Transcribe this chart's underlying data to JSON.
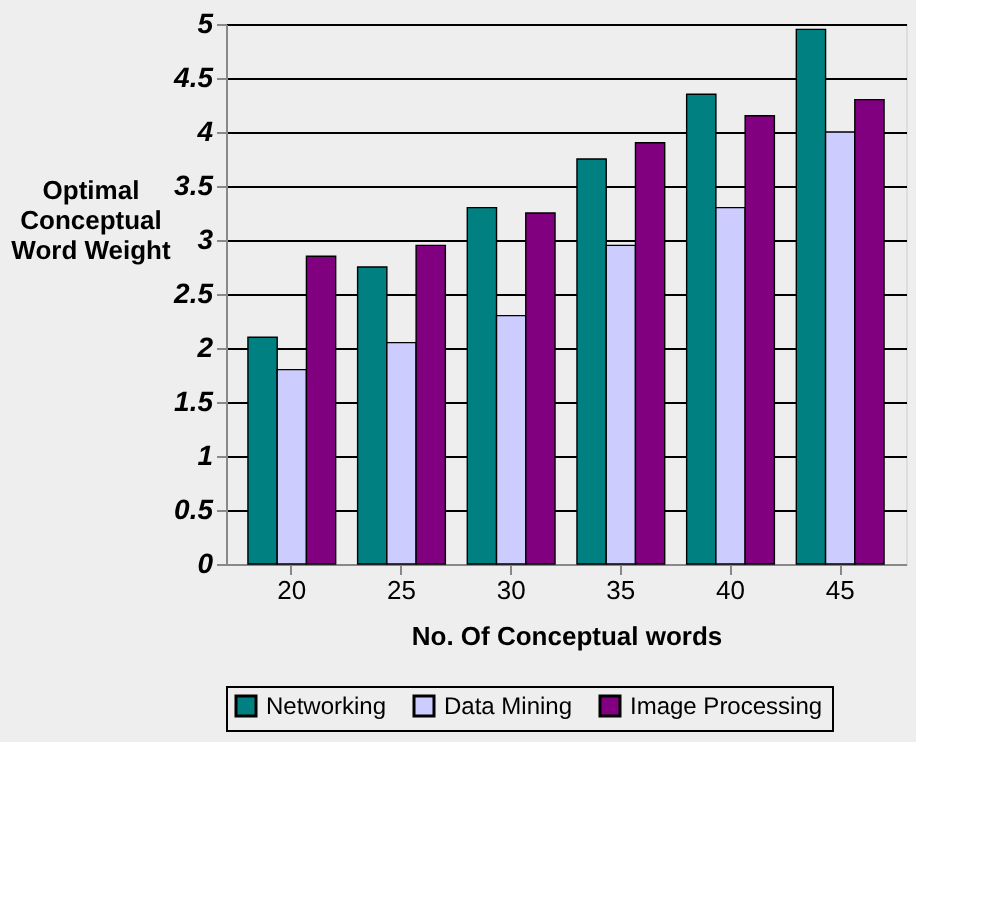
{
  "chart_data": {
    "type": "bar",
    "xlabel": "No. Of Conceptual words",
    "ylabel": "Optimal Conceptual Word Weight",
    "categories": [
      "20",
      "25",
      "30",
      "35",
      "40",
      "45"
    ],
    "series": [
      {
        "name": "Networking",
        "color": "#008080",
        "values": [
          2.1,
          2.75,
          3.3,
          3.75,
          4.35,
          4.95
        ]
      },
      {
        "name": "Data Mining",
        "color": "#ccccff",
        "values": [
          1.8,
          2.05,
          2.3,
          2.95,
          3.3,
          4.0
        ]
      },
      {
        "name": "Image Processing",
        "color": "#800080",
        "values": [
          2.85,
          2.95,
          3.25,
          3.9,
          4.15,
          4.3
        ]
      }
    ],
    "ylim": [
      0,
      5
    ],
    "yticks": [
      0,
      0.5,
      1,
      1.5,
      2,
      2.5,
      3,
      3.5,
      4,
      4.5,
      5
    ],
    "grid": "y",
    "legend": "bottom"
  }
}
